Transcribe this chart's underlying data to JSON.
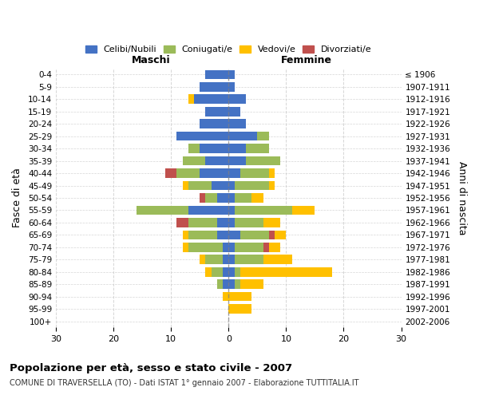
{
  "age_groups": [
    "0-4",
    "5-9",
    "10-14",
    "15-19",
    "20-24",
    "25-29",
    "30-34",
    "35-39",
    "40-44",
    "45-49",
    "50-54",
    "55-59",
    "60-64",
    "65-69",
    "70-74",
    "75-79",
    "80-84",
    "85-89",
    "90-94",
    "95-99",
    "100+"
  ],
  "birth_years": [
    "2002-2006",
    "1997-2001",
    "1992-1996",
    "1987-1991",
    "1982-1986",
    "1977-1981",
    "1972-1976",
    "1967-1971",
    "1962-1966",
    "1957-1961",
    "1952-1956",
    "1947-1951",
    "1942-1946",
    "1937-1941",
    "1932-1936",
    "1927-1931",
    "1922-1926",
    "1917-1921",
    "1912-1916",
    "1907-1911",
    "≤ 1906"
  ],
  "colors": {
    "celibi": "#4472C4",
    "coniugati": "#9BBB59",
    "vedovi": "#FFC000",
    "divorziati": "#C0504D"
  },
  "males": {
    "celibi": [
      4,
      5,
      6,
      4,
      5,
      9,
      5,
      4,
      5,
      3,
      2,
      7,
      2,
      2,
      1,
      1,
      1,
      1,
      0,
      0,
      0
    ],
    "coniugati": [
      0,
      0,
      0,
      0,
      0,
      0,
      2,
      4,
      4,
      4,
      2,
      9,
      5,
      5,
      6,
      3,
      2,
      1,
      0,
      0,
      0
    ],
    "vedovi": [
      0,
      0,
      1,
      0,
      0,
      0,
      0,
      0,
      0,
      1,
      0,
      0,
      0,
      1,
      1,
      1,
      1,
      0,
      1,
      0,
      0
    ],
    "divorziati": [
      0,
      0,
      0,
      0,
      0,
      0,
      0,
      0,
      2,
      0,
      1,
      0,
      2,
      0,
      0,
      0,
      0,
      0,
      0,
      0,
      0
    ]
  },
  "females": {
    "celibi": [
      1,
      1,
      3,
      2,
      3,
      5,
      3,
      3,
      2,
      1,
      1,
      1,
      1,
      2,
      1,
      1,
      1,
      1,
      0,
      0,
      0
    ],
    "coniugati": [
      0,
      0,
      0,
      0,
      0,
      2,
      4,
      6,
      5,
      6,
      3,
      10,
      5,
      5,
      5,
      5,
      1,
      1,
      0,
      0,
      0
    ],
    "vedovi": [
      0,
      0,
      0,
      0,
      0,
      0,
      0,
      0,
      1,
      1,
      2,
      4,
      3,
      2,
      2,
      5,
      16,
      4,
      4,
      4,
      0
    ],
    "divorziati": [
      0,
      0,
      0,
      0,
      0,
      0,
      0,
      0,
      0,
      0,
      0,
      0,
      0,
      1,
      1,
      0,
      0,
      0,
      0,
      0,
      0
    ]
  },
  "xlim": 30,
  "title": "Popolazione per età, sesso e stato civile - 2007",
  "subtitle": "COMUNE DI TRAVERSELLA (TO) - Dati ISTAT 1° gennaio 2007 - Elaborazione TUTTITALIA.IT",
  "ylabel_left": "Fasce di età",
  "ylabel_right": "Anni di nascita",
  "xlabel_left": "Maschi",
  "xlabel_right": "Femmine",
  "legend_labels": [
    "Celibi/Nubili",
    "Coniugati/e",
    "Vedovi/e",
    "Divorziati/e"
  ],
  "background_color": "#ffffff",
  "grid_color": "#cccccc"
}
